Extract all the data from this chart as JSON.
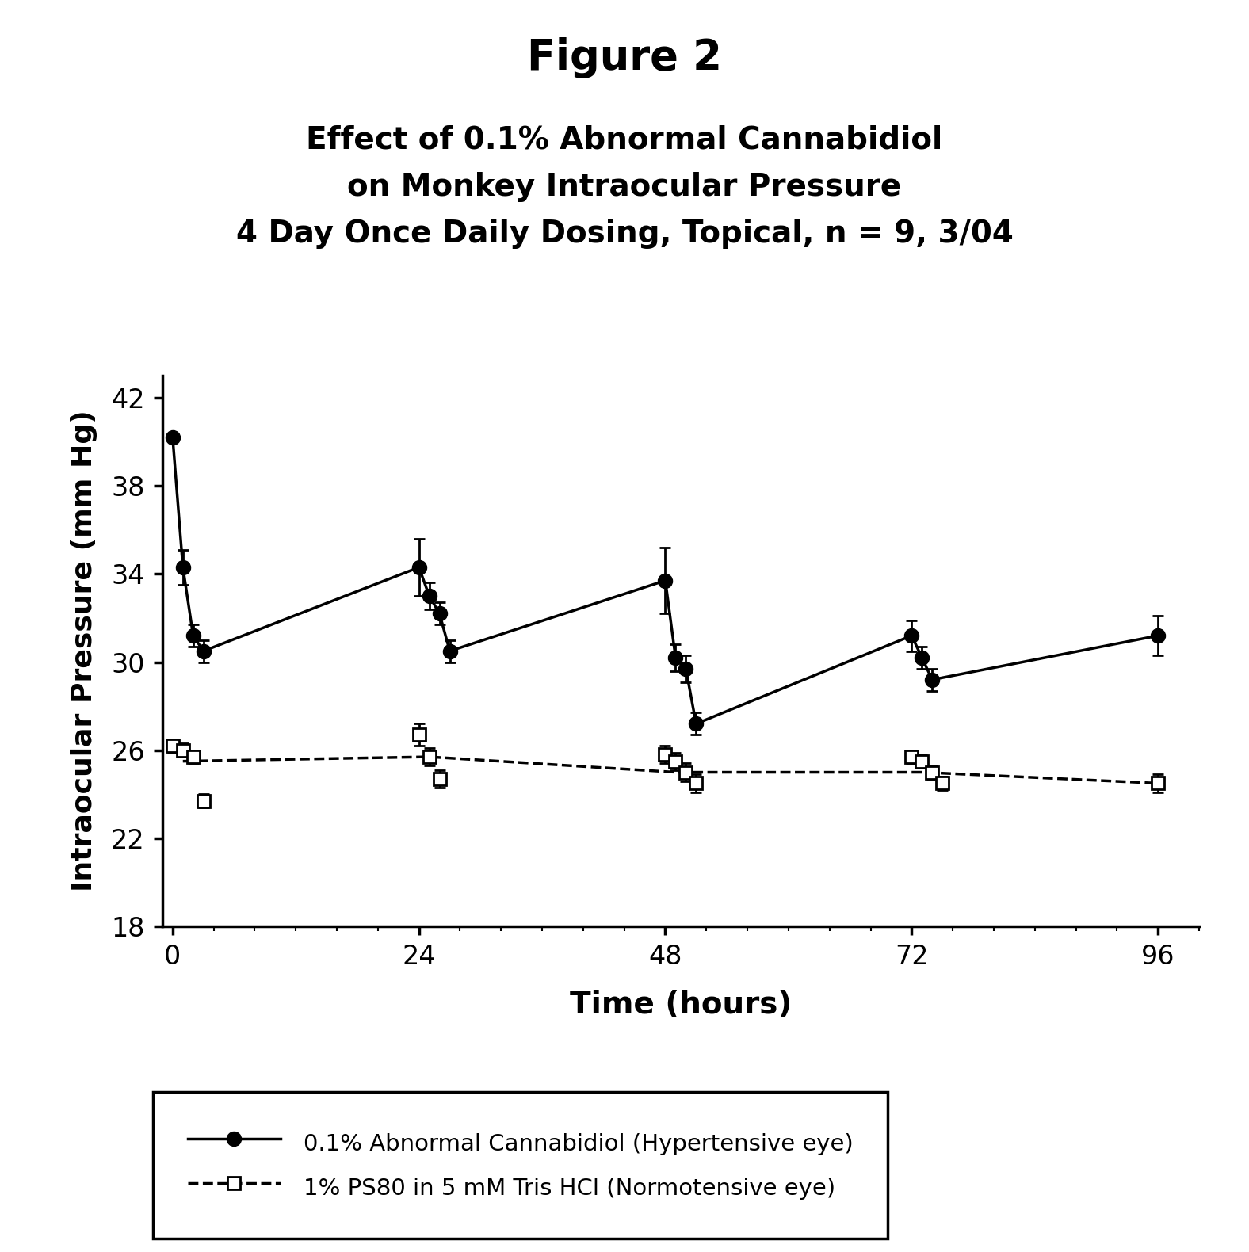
{
  "title_main": "Figure 2",
  "title_sub": "Effect of 0.1% Abnormal Cannabidiol\non Monkey Intraocular Pressure\n4 Day Once Daily Dosing, Topical, n = 9, 3/04",
  "xlabel": "Time (hours)",
  "ylabel": "Intraocular Pressure (mm Hg)",
  "ylim": [
    18,
    43
  ],
  "yticks": [
    18,
    22,
    26,
    30,
    34,
    38,
    42
  ],
  "xlim": [
    -1,
    100
  ],
  "xticks": [
    0,
    24,
    48,
    72,
    96
  ],
  "series1_label": "0.1% Abnormal Cannabidiol (Hypertensive eye)",
  "series2_label": "1% PS80 in 5 mM Tris HCl (Normotensive eye)",
  "s1_x": [
    0,
    1,
    2,
    3,
    24,
    25,
    26,
    27,
    48,
    49,
    50,
    51,
    72,
    73,
    74,
    96
  ],
  "s1_y": [
    40.2,
    34.3,
    31.2,
    30.5,
    34.3,
    33.0,
    32.2,
    30.5,
    33.7,
    30.2,
    29.7,
    27.2,
    31.2,
    30.2,
    29.2,
    31.2
  ],
  "s1_yerr": [
    0.0,
    0.8,
    0.5,
    0.5,
    1.3,
    0.6,
    0.5,
    0.5,
    1.5,
    0.6,
    0.6,
    0.5,
    0.7,
    0.5,
    0.5,
    0.9
  ],
  "s1_line_x": [
    0,
    1,
    2,
    3,
    24,
    25,
    26,
    27,
    48,
    49,
    50,
    51,
    72,
    73,
    74,
    96
  ],
  "s1_line_y": [
    40.2,
    34.3,
    31.2,
    30.5,
    34.3,
    33.0,
    32.2,
    30.5,
    33.7,
    30.2,
    29.7,
    27.2,
    31.2,
    30.2,
    29.2,
    31.2
  ],
  "s2_x": [
    0,
    1,
    2,
    3,
    24,
    25,
    26,
    48,
    49,
    50,
    51,
    72,
    73,
    74,
    75,
    96
  ],
  "s2_y": [
    26.2,
    26.0,
    25.7,
    23.7,
    26.7,
    25.7,
    24.7,
    25.8,
    25.5,
    25.0,
    24.5,
    25.7,
    25.5,
    25.0,
    24.5,
    24.5
  ],
  "s2_yerr": [
    0.3,
    0.3,
    0.3,
    0.3,
    0.5,
    0.4,
    0.4,
    0.4,
    0.4,
    0.4,
    0.4,
    0.3,
    0.3,
    0.3,
    0.3,
    0.4
  ],
  "s2_line_x": [
    1,
    25,
    49,
    73,
    96
  ],
  "s2_line_y": [
    25.5,
    25.7,
    25.0,
    25.0,
    24.5
  ],
  "background_color": "#ffffff"
}
